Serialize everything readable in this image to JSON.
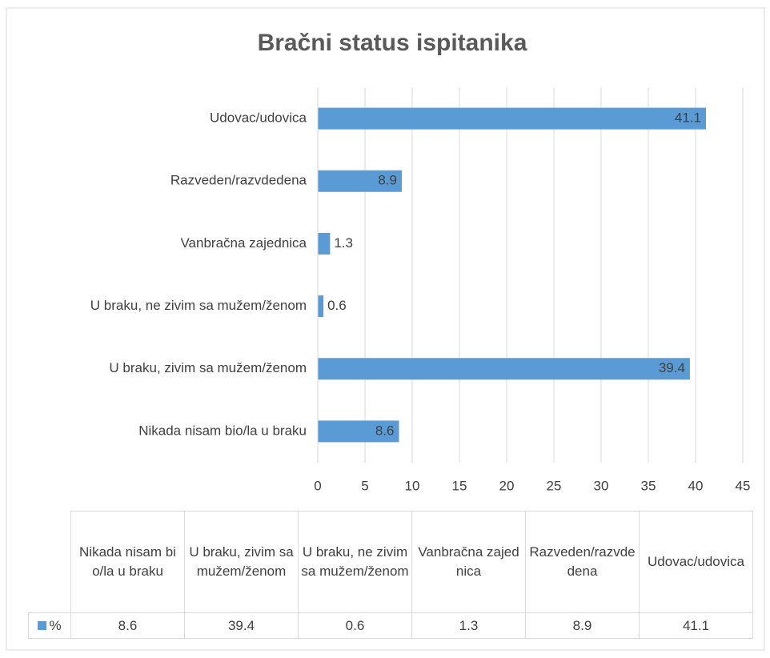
{
  "chart_data": {
    "type": "bar",
    "orientation": "horizontal",
    "title": "Bračni status ispitanika",
    "categories": [
      "Nikada nisam bio/la u braku",
      "U braku, zivim sa mužem/ženom",
      "U braku, ne zivim sa mužem/ženom",
      "Vanbračna zajednica",
      "Razveden/razvdedena",
      "Udovac/udovica"
    ],
    "series": [
      {
        "name": "%",
        "color": "#5b9bd5",
        "values": [
          8.6,
          39.4,
          0.6,
          1.3,
          8.9,
          41.1
        ]
      }
    ],
    "xlim": [
      0,
      45
    ],
    "xticks": [
      0,
      5,
      10,
      15,
      20,
      25,
      30,
      35,
      40,
      45
    ],
    "grid": true,
    "data_table": true
  }
}
